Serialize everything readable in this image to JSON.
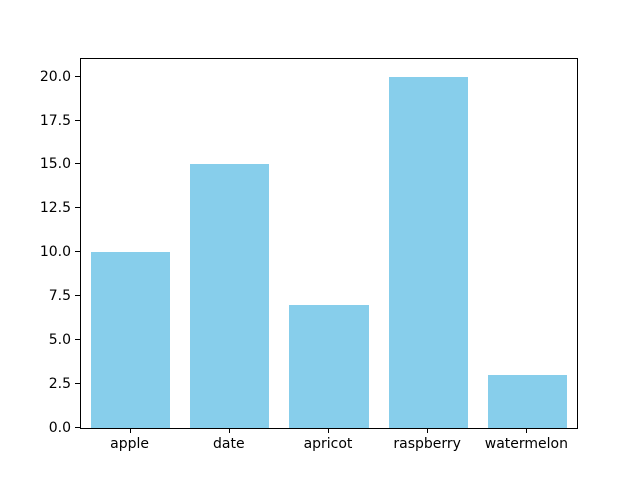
{
  "chart_data": {
    "type": "bar",
    "categories": [
      "apple",
      "date",
      "apricot",
      "raspberry",
      "watermelon"
    ],
    "values": [
      10,
      15,
      7,
      20,
      3
    ],
    "title": "",
    "xlabel": "",
    "ylabel": "",
    "ylim": [
      0,
      21
    ],
    "yticks": [
      "0.0",
      "2.5",
      "5.0",
      "7.5",
      "10.0",
      "12.5",
      "15.0",
      "17.5",
      "20.0"
    ],
    "bar_color": "#87CEEB",
    "bar_width_ratio": 0.8,
    "grid": false,
    "legend": false,
    "frame": "full-box",
    "axis_color": "#000000",
    "tick_label_color": "#000000",
    "background_color": "#ffffff"
  }
}
